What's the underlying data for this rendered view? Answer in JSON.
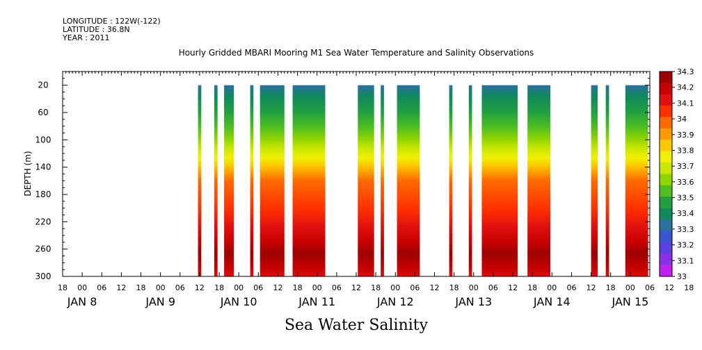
{
  "header": {
    "longitude": "LONGITUDE : 122W(-122)",
    "latitude": "LATITUDE : 36.8N",
    "year": "YEAR : 2011"
  },
  "chart_data": {
    "type": "heatmap",
    "title": "Hourly Gridded MBARI Mooring M1 Sea Water Temperature and Salinity Observations",
    "subtitle": "Sea Water Salinity",
    "ylabel": "DEPTH (m)",
    "xlabel": "",
    "y_range": [
      300,
      0
    ],
    "y_ticks": [
      20,
      60,
      100,
      140,
      180,
      220,
      260,
      300
    ],
    "x_range_hours": [
      -6,
      174
    ],
    "x_hour_ticks": [
      "18",
      "00",
      "06",
      "12",
      "18",
      "00",
      "06",
      "12",
      "18",
      "00",
      "06",
      "12",
      "18",
      "00",
      "06",
      "12",
      "18",
      "00",
      "06",
      "12",
      "18",
      "00",
      "06",
      "12",
      "18",
      "00",
      "06",
      "12",
      "18",
      "00",
      "06",
      "12",
      "18"
    ],
    "x_day_labels": [
      {
        "label": "JAN  8",
        "hour": 0
      },
      {
        "label": "JAN  9",
        "hour": 24
      },
      {
        "label": "JAN 10",
        "hour": 48
      },
      {
        "label": "JAN 11",
        "hour": 72
      },
      {
        "label": "JAN 12",
        "hour": 96
      },
      {
        "label": "JAN 13",
        "hour": 120
      },
      {
        "label": "JAN 14",
        "hour": 144
      },
      {
        "label": "JAN 15",
        "hour": 168
      }
    ],
    "colorbar": {
      "levels": [
        "34.3",
        "34.2",
        "34.1",
        "34",
        "33.9",
        "33.8",
        "33.7",
        "33.6",
        "33.5",
        "33.4",
        "33.3",
        "33.2",
        "33.1",
        "33"
      ],
      "colors": [
        "#9e0000",
        "#c80000",
        "#e01010",
        "#ff3000",
        "#ff6a00",
        "#ff9a00",
        "#ffc800",
        "#f0f000",
        "#c8e600",
        "#90d400",
        "#50be20",
        "#20a040",
        "#108a5a",
        "#2a70a0",
        "#3a55d0",
        "#5a40e0",
        "#8a30e8",
        "#c020f0"
      ]
    },
    "depth_profile": {
      "depths": [
        20,
        60,
        100,
        140,
        180,
        220,
        260,
        300
      ],
      "salinity": [
        33.3,
        33.5,
        33.7,
        33.9,
        34.05,
        34.15,
        34.25,
        34.2
      ]
    },
    "observation_periods_hours": [
      {
        "start": 35.5,
        "end": 36.5
      },
      {
        "start": 40.5,
        "end": 41.5
      },
      {
        "start": 43.5,
        "end": 46.5
      },
      {
        "start": 51.5,
        "end": 52.5
      },
      {
        "start": 54.5,
        "end": 58.5
      },
      {
        "start": 58.5,
        "end": 62.0
      },
      {
        "start": 64.5,
        "end": 74.5
      },
      {
        "start": 84.5,
        "end": 89.5
      },
      {
        "start": 91.5,
        "end": 92.5
      },
      {
        "start": 96.5,
        "end": 103.5
      },
      {
        "start": 112.5,
        "end": 113.5
      },
      {
        "start": 118.5,
        "end": 119.5
      },
      {
        "start": 122.5,
        "end": 133.5
      },
      {
        "start": 136.5,
        "end": 143.5
      },
      {
        "start": 156.0,
        "end": 158.0
      },
      {
        "start": 160.5,
        "end": 161.5
      },
      {
        "start": 166.5,
        "end": 173.5
      }
    ]
  }
}
